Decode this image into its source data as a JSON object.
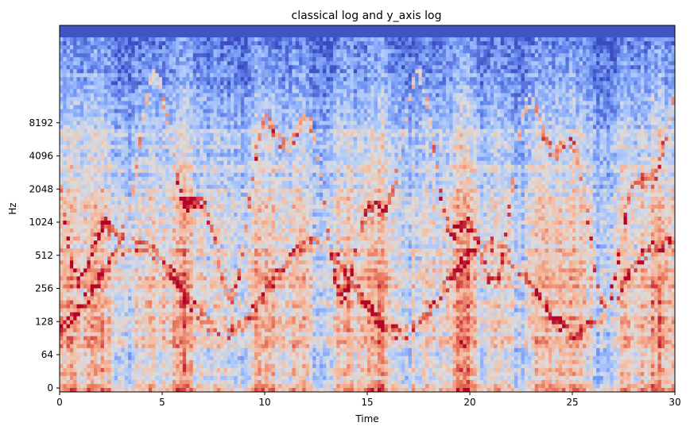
{
  "chart_data": {
    "type": "heatmap",
    "title": "classical log and y_axis log",
    "xlabel": "Time",
    "ylabel": "Hz",
    "xlim": [
      0,
      30
    ],
    "y_scale": "log (symlog, linear near 0)",
    "x_ticks": [
      0,
      5,
      10,
      15,
      20,
      25,
      30
    ],
    "x_tick_labels": [
      "0",
      "5",
      "10",
      "15",
      "20",
      "25",
      "30"
    ],
    "y_ticks": [
      0,
      64,
      128,
      256,
      512,
      1024,
      2048,
      4096,
      8192
    ],
    "y_tick_labels": [
      "0",
      "64",
      "128",
      "256",
      "512",
      "1024",
      "2048",
      "4096",
      "8192"
    ],
    "colormap": [
      "#3b4cc0",
      "#6f92f3",
      "#aac7fd",
      "#dddcdc",
      "#f7b89c",
      "#e7745b",
      "#b40426"
    ],
    "grid": false
  }
}
